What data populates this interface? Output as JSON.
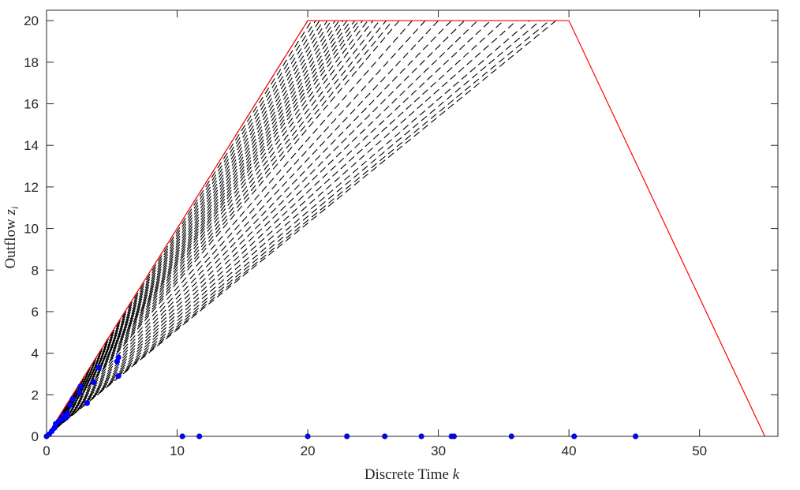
{
  "chart_data": {
    "type": "line",
    "title": "",
    "xlabel": "Discrete Time k",
    "xlabel_parts": {
      "text": "Discrete Time ",
      "var": "k"
    },
    "ylabel": "Outflow z_i",
    "ylabel_parts": {
      "text": "Outflow ",
      "var": "z",
      "sub": "i"
    },
    "xlim": [
      0,
      56
    ],
    "ylim": [
      0,
      20.5
    ],
    "xticks": [
      0,
      10,
      20,
      30,
      40,
      50
    ],
    "yticks": [
      0,
      2,
      4,
      6,
      8,
      10,
      12,
      14,
      16,
      18,
      20
    ],
    "grid": false,
    "colors": {
      "envelope": "#ff0000",
      "trajectories": "#000000",
      "points": "#0000ff",
      "axes": "#262626"
    },
    "envelope": {
      "x": [
        0,
        20,
        40,
        55
      ],
      "y": [
        0,
        20,
        20,
        0
      ],
      "style": "solid",
      "color": "red"
    },
    "trajectories": {
      "style": "dashed",
      "color": "black",
      "description_values": "dashed lines from near origin rising linearly to 20",
      "end_x": [
        20.0,
        20.3,
        20.6,
        20.9,
        21.2,
        21.5,
        21.8,
        22.1,
        22.4,
        22.7,
        23.0,
        23.3,
        23.6,
        23.9,
        24.2,
        24.6,
        25.0,
        25.5,
        26.0,
        26.5,
        27.0,
        28.0,
        29.0,
        30.0,
        31.0,
        32.0,
        33.0,
        34.0,
        35.0,
        36.0,
        37.0,
        37.8,
        38.5,
        39.0
      ],
      "end_y": 20
    },
    "scatter": {
      "color": "blue",
      "points": [
        [
          0,
          0
        ],
        [
          0.2,
          0.1
        ],
        [
          0.4,
          0.25
        ],
        [
          0.6,
          0.4
        ],
        [
          0.7,
          0.6
        ],
        [
          0.9,
          0.7
        ],
        [
          1.1,
          0.8
        ],
        [
          1.3,
          0.9
        ],
        [
          1.3,
          1.0
        ],
        [
          1.5,
          0.9
        ],
        [
          1.6,
          1.1
        ],
        [
          1.8,
          1.5
        ],
        [
          2.0,
          1.8
        ],
        [
          2.5,
          2.1
        ],
        [
          2.6,
          2.4
        ],
        [
          3.1,
          1.6
        ],
        [
          3.6,
          2.6
        ],
        [
          4.0,
          3.3
        ],
        [
          5.4,
          3.6
        ],
        [
          5.5,
          3.8
        ],
        [
          5.5,
          2.9
        ],
        [
          10.4,
          0
        ],
        [
          11.7,
          0
        ],
        [
          20.0,
          0
        ],
        [
          23.0,
          0
        ],
        [
          25.9,
          0
        ],
        [
          28.7,
          0
        ],
        [
          31.0,
          0
        ],
        [
          31.2,
          0
        ],
        [
          35.6,
          0
        ],
        [
          40.4,
          0
        ],
        [
          45.1,
          0
        ]
      ]
    }
  }
}
